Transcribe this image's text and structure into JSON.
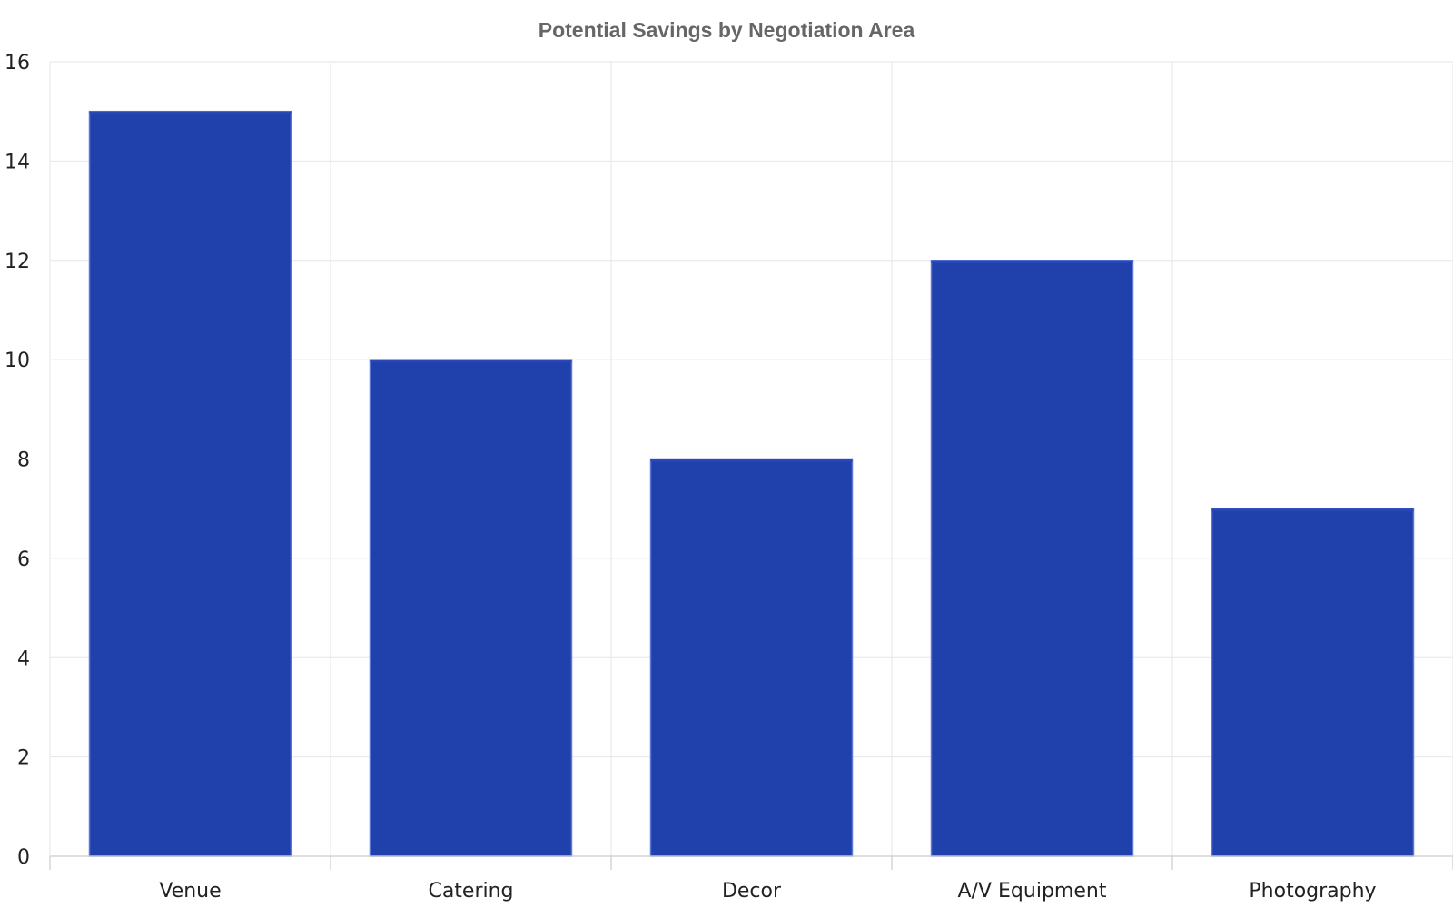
{
  "chart_data": {
    "type": "bar",
    "title": "Potential Savings by Negotiation Area",
    "categories": [
      "Venue",
      "Catering",
      "Decor",
      "A/V Equipment",
      "Photography"
    ],
    "values": [
      15,
      10,
      8,
      12,
      7
    ],
    "xlabel": "",
    "ylabel": "",
    "ylim": [
      0,
      16
    ],
    "yticks": [
      0,
      2,
      4,
      6,
      8,
      10,
      12,
      14,
      16
    ],
    "grid": true,
    "legend": "none",
    "bar_color": "#2041ac",
    "bar_edge_color": "#5c78d6"
  }
}
